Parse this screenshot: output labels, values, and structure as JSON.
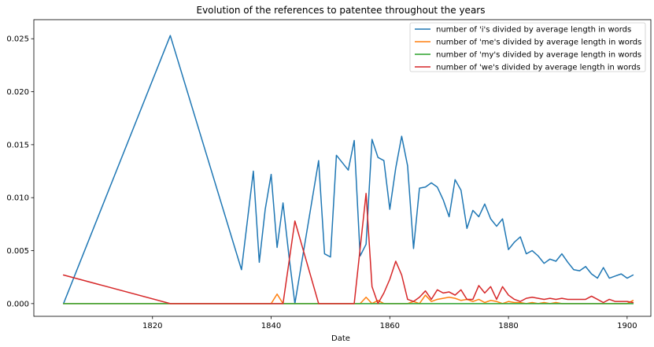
{
  "chart_data": {
    "type": "line",
    "title": "Evolution of the references to patentee throughout the years",
    "xlabel": "Date",
    "ylabel": "",
    "xlim": [
      1800,
      1904
    ],
    "ylim": [
      -0.0012,
      0.0268
    ],
    "xticks": [
      1820,
      1840,
      1860,
      1880,
      1900
    ],
    "yticks": [
      0.0,
      0.005,
      0.01,
      0.015,
      0.02,
      0.025
    ],
    "ytick_labels": [
      "0.000",
      "0.005",
      "0.010",
      "0.015",
      "0.020",
      "0.025"
    ],
    "grid": false,
    "legend": "top-right",
    "series": [
      {
        "name": "number of 'i's divided by average length in words",
        "color": "#1f77b4",
        "points": [
          [
            1805,
            0.0
          ],
          [
            1823,
            0.0253
          ],
          [
            1835,
            0.0032
          ],
          [
            1837,
            0.0125
          ],
          [
            1838,
            0.0039
          ],
          [
            1839,
            0.0089
          ],
          [
            1840,
            0.0122
          ],
          [
            1841,
            0.0053
          ],
          [
            1842,
            0.0095
          ],
          [
            1843,
            0.0045
          ],
          [
            1844,
            0.0
          ],
          [
            1848,
            0.0135
          ],
          [
            1849,
            0.0047
          ],
          [
            1850,
            0.0044
          ],
          [
            1851,
            0.014
          ],
          [
            1853,
            0.0126
          ],
          [
            1854,
            0.0154
          ],
          [
            1855,
            0.0045
          ],
          [
            1856,
            0.0056
          ],
          [
            1857,
            0.0155
          ],
          [
            1858,
            0.0138
          ],
          [
            1859,
            0.0135
          ],
          [
            1860,
            0.0089
          ],
          [
            1861,
            0.0128
          ],
          [
            1862,
            0.0158
          ],
          [
            1863,
            0.013
          ],
          [
            1864,
            0.0052
          ],
          [
            1865,
            0.0109
          ],
          [
            1866,
            0.011
          ],
          [
            1867,
            0.0114
          ],
          [
            1868,
            0.011
          ],
          [
            1869,
            0.0098
          ],
          [
            1870,
            0.0082
          ],
          [
            1871,
            0.0117
          ],
          [
            1872,
            0.0107
          ],
          [
            1873,
            0.0071
          ],
          [
            1874,
            0.0088
          ],
          [
            1875,
            0.0082
          ],
          [
            1876,
            0.0094
          ],
          [
            1877,
            0.008
          ],
          [
            1878,
            0.0073
          ],
          [
            1879,
            0.008
          ],
          [
            1880,
            0.0051
          ],
          [
            1881,
            0.0058
          ],
          [
            1882,
            0.0063
          ],
          [
            1883,
            0.0047
          ],
          [
            1884,
            0.005
          ],
          [
            1885,
            0.0045
          ],
          [
            1886,
            0.0038
          ],
          [
            1887,
            0.0042
          ],
          [
            1888,
            0.004
          ],
          [
            1889,
            0.0047
          ],
          [
            1890,
            0.0039
          ],
          [
            1891,
            0.0032
          ],
          [
            1892,
            0.0031
          ],
          [
            1893,
            0.0035
          ],
          [
            1894,
            0.0028
          ],
          [
            1895,
            0.0024
          ],
          [
            1896,
            0.0034
          ],
          [
            1897,
            0.0024
          ],
          [
            1898,
            0.0026
          ],
          [
            1899,
            0.0028
          ],
          [
            1900,
            0.0024
          ],
          [
            1901,
            0.0027
          ]
        ]
      },
      {
        "name": "number of 'me's divided by average length in words",
        "color": "#ff7f0e",
        "points": [
          [
            1805,
            0.0
          ],
          [
            1823,
            0.0
          ],
          [
            1840,
            0.0
          ],
          [
            1841,
            0.0009
          ],
          [
            1842,
            0.0
          ],
          [
            1855,
            0.0
          ],
          [
            1856,
            0.0006
          ],
          [
            1857,
            0.0
          ],
          [
            1858,
            0.0003
          ],
          [
            1859,
            0.0
          ],
          [
            1863,
            0.0
          ],
          [
            1864,
            0.0002
          ],
          [
            1865,
            0.0
          ],
          [
            1866,
            0.0008
          ],
          [
            1867,
            0.0002
          ],
          [
            1868,
            0.0004
          ],
          [
            1869,
            0.0005
          ],
          [
            1870,
            0.0006
          ],
          [
            1871,
            0.0005
          ],
          [
            1872,
            0.0003
          ],
          [
            1873,
            0.0004
          ],
          [
            1874,
            0.0002
          ],
          [
            1875,
            0.0004
          ],
          [
            1876,
            0.0001
          ],
          [
            1877,
            0.0003
          ],
          [
            1878,
            0.0002
          ],
          [
            1879,
            0.0
          ],
          [
            1880,
            0.0002
          ],
          [
            1881,
            0.0001
          ],
          [
            1882,
            0.0001
          ],
          [
            1883,
            0.0
          ],
          [
            1884,
            0.0001
          ],
          [
            1885,
            0.0
          ],
          [
            1886,
            0.0001
          ],
          [
            1887,
            0.0
          ],
          [
            1888,
            0.0001
          ],
          [
            1889,
            0.0
          ],
          [
            1890,
            0.0
          ],
          [
            1895,
            0.0
          ],
          [
            1900,
            0.0
          ],
          [
            1901,
            0.0003
          ]
        ]
      },
      {
        "name": "number of 'my's divided by average length in words",
        "color": "#2ca02c",
        "points": [
          [
            1805,
            0.0
          ],
          [
            1823,
            0.0
          ],
          [
            1840,
            0.0
          ],
          [
            1860,
            0.0
          ],
          [
            1880,
            0.0
          ],
          [
            1890,
            0.0
          ],
          [
            1901,
            0.0
          ]
        ]
      },
      {
        "name": "number of 'we's divided by average length in words",
        "color": "#d62728",
        "points": [
          [
            1805,
            0.0027
          ],
          [
            1823,
            0.0
          ],
          [
            1840,
            0.0
          ],
          [
            1842,
            0.0
          ],
          [
            1844,
            0.0078
          ],
          [
            1848,
            0.0
          ],
          [
            1854,
            0.0
          ],
          [
            1856,
            0.0104
          ],
          [
            1857,
            0.0016
          ],
          [
            1858,
            0.0
          ],
          [
            1859,
            0.001
          ],
          [
            1860,
            0.0023
          ],
          [
            1861,
            0.004
          ],
          [
            1862,
            0.0027
          ],
          [
            1863,
            0.0004
          ],
          [
            1864,
            0.0002
          ],
          [
            1865,
            0.0006
          ],
          [
            1866,
            0.0012
          ],
          [
            1867,
            0.0004
          ],
          [
            1868,
            0.0013
          ],
          [
            1869,
            0.001
          ],
          [
            1870,
            0.0011
          ],
          [
            1871,
            0.0008
          ],
          [
            1872,
            0.0013
          ],
          [
            1873,
            0.0004
          ],
          [
            1874,
            0.0004
          ],
          [
            1875,
            0.0017
          ],
          [
            1876,
            0.001
          ],
          [
            1877,
            0.0016
          ],
          [
            1878,
            0.0004
          ],
          [
            1879,
            0.0016
          ],
          [
            1880,
            0.0008
          ],
          [
            1881,
            0.0004
          ],
          [
            1882,
            0.0002
          ],
          [
            1883,
            0.0005
          ],
          [
            1884,
            0.0006
          ],
          [
            1885,
            0.0005
          ],
          [
            1886,
            0.0004
          ],
          [
            1887,
            0.0005
          ],
          [
            1888,
            0.0004
          ],
          [
            1889,
            0.0005
          ],
          [
            1890,
            0.0004
          ],
          [
            1891,
            0.0004
          ],
          [
            1892,
            0.0004
          ],
          [
            1893,
            0.0004
          ],
          [
            1894,
            0.0007
          ],
          [
            1895,
            0.0004
          ],
          [
            1896,
            0.0001
          ],
          [
            1897,
            0.0004
          ],
          [
            1898,
            0.0002
          ],
          [
            1899,
            0.0002
          ],
          [
            1900,
            0.0002
          ],
          [
            1901,
            0.0001
          ]
        ]
      }
    ]
  }
}
